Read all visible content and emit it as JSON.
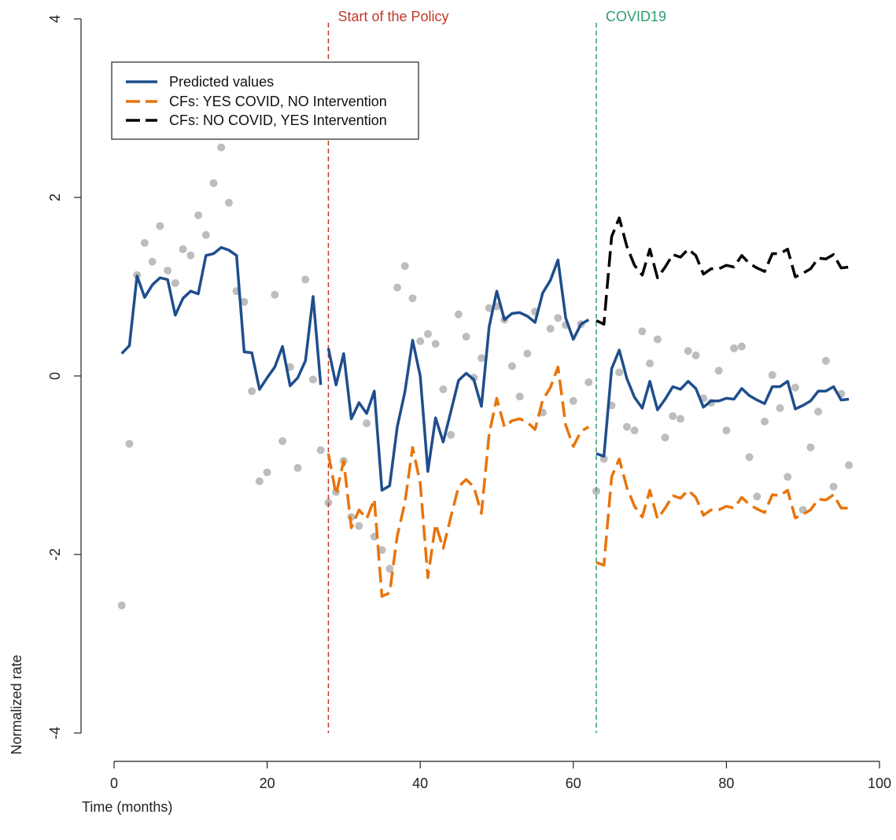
{
  "chart_data": {
    "type": "line",
    "title": "",
    "xlabel": "Time (months)",
    "ylabel": "Normalized rate",
    "xlim": [
      0,
      100
    ],
    "ylim": [
      -4,
      4
    ],
    "x_ticks": [
      "0",
      "20",
      "40",
      "60",
      "80",
      "100"
    ],
    "y_ticks": [
      "-4",
      "-2",
      "0",
      "2",
      "4"
    ],
    "grid": false,
    "legend_position": "top-left",
    "vertical_lines": [
      {
        "x": 28,
        "label": "Start of the Policy",
        "color": "#c0392b"
      },
      {
        "x": 63,
        "label": "COVID19",
        "color": "#2e9e6e"
      }
    ],
    "observed_points": {
      "color": "#bdbdbd",
      "points": [
        [
          1,
          -2.57
        ],
        [
          2,
          -0.76
        ],
        [
          3,
          1.13
        ],
        [
          4,
          1.49
        ],
        [
          5,
          1.28
        ],
        [
          6,
          1.68
        ],
        [
          7,
          1.18
        ],
        [
          8,
          1.04
        ],
        [
          9,
          1.42
        ],
        [
          10,
          1.35
        ],
        [
          11,
          1.8
        ],
        [
          12,
          1.58
        ],
        [
          13,
          2.16
        ],
        [
          14,
          2.56
        ],
        [
          15,
          1.94
        ],
        [
          16,
          0.95
        ],
        [
          17,
          0.83
        ],
        [
          18,
          -0.17
        ],
        [
          19,
          -1.18
        ],
        [
          20,
          -1.08
        ],
        [
          21,
          0.91
        ],
        [
          22,
          -0.73
        ],
        [
          23,
          0.1
        ],
        [
          24,
          -1.03
        ],
        [
          25,
          1.08
        ],
        [
          26,
          -0.04
        ],
        [
          27,
          -0.83
        ],
        [
          28,
          -1.42
        ],
        [
          29,
          -1.3
        ],
        [
          30,
          -0.95
        ],
        [
          31,
          -1.58
        ],
        [
          32,
          -1.68
        ],
        [
          33,
          -0.53
        ],
        [
          34,
          -1.8
        ],
        [
          35,
          -1.95
        ],
        [
          36,
          -2.16
        ],
        [
          37,
          0.99
        ],
        [
          38,
          1.23
        ],
        [
          39,
          0.87
        ],
        [
          40,
          0.39
        ],
        [
          41,
          0.47
        ],
        [
          42,
          0.36
        ],
        [
          43,
          -0.15
        ],
        [
          44,
          -0.66
        ],
        [
          45,
          0.69
        ],
        [
          46,
          0.44
        ],
        [
          47,
          -0.02
        ],
        [
          48,
          0.2
        ],
        [
          49,
          0.76
        ],
        [
          50,
          0.78
        ],
        [
          51,
          0.63
        ],
        [
          52,
          0.11
        ],
        [
          53,
          -0.23
        ],
        [
          54,
          0.25
        ],
        [
          55,
          0.72
        ],
        [
          56,
          -0.41
        ],
        [
          57,
          0.53
        ],
        [
          58,
          0.65
        ],
        [
          59,
          0.57
        ],
        [
          60,
          -0.28
        ],
        [
          61,
          0.58
        ],
        [
          62,
          -0.07
        ],
        [
          63,
          -1.29
        ],
        [
          64,
          -0.93
        ],
        [
          65,
          -0.33
        ],
        [
          66,
          0.04
        ],
        [
          67,
          -0.57
        ],
        [
          68,
          -0.61
        ],
        [
          69,
          0.5
        ],
        [
          70,
          0.14
        ],
        [
          71,
          0.41
        ],
        [
          72,
          -0.69
        ],
        [
          73,
          -0.45
        ],
        [
          74,
          -0.48
        ],
        [
          75,
          0.28
        ],
        [
          76,
          0.23
        ],
        [
          77,
          -0.25
        ],
        [
          78,
          -0.3
        ],
        [
          79,
          0.06
        ],
        [
          80,
          -0.61
        ],
        [
          81,
          0.31
        ],
        [
          82,
          0.33
        ],
        [
          83,
          -0.91
        ],
        [
          84,
          -1.35
        ],
        [
          85,
          -0.51
        ],
        [
          86,
          0.01
        ],
        [
          87,
          -0.36
        ],
        [
          88,
          -1.13
        ],
        [
          89,
          -0.13
        ],
        [
          90,
          -1.5
        ],
        [
          91,
          -0.8
        ],
        [
          92,
          -0.4
        ],
        [
          93,
          0.17
        ],
        [
          94,
          -1.24
        ],
        [
          95,
          -0.2
        ],
        [
          96,
          -1.0
        ]
      ]
    },
    "series": [
      {
        "name": "Predicted values",
        "color": "#1f4e8c",
        "style": "solid",
        "segments": [
          [
            [
              1,
              0.25
            ],
            [
              2,
              0.34
            ],
            [
              3,
              1.12
            ],
            [
              4,
              0.88
            ],
            [
              5,
              1.02
            ],
            [
              6,
              1.1
            ],
            [
              7,
              1.08
            ],
            [
              8,
              0.68
            ],
            [
              9,
              0.87
            ],
            [
              10,
              0.95
            ],
            [
              11,
              0.92
            ],
            [
              12,
              1.35
            ],
            [
              13,
              1.37
            ],
            [
              14,
              1.44
            ],
            [
              15,
              1.41
            ],
            [
              16,
              1.35
            ],
            [
              17,
              0.27
            ],
            [
              18,
              0.26
            ],
            [
              19,
              -0.15
            ],
            [
              20,
              -0.02
            ],
            [
              21,
              0.1
            ],
            [
              22,
              0.33
            ],
            [
              23,
              -0.11
            ],
            [
              24,
              -0.02
            ],
            [
              25,
              0.17
            ],
            [
              26,
              0.89
            ],
            [
              27,
              -0.1
            ]
          ],
          [
            [
              28,
              0.31
            ],
            [
              29,
              -0.1
            ],
            [
              30,
              0.25
            ],
            [
              31,
              -0.48
            ],
            [
              32,
              -0.3
            ],
            [
              33,
              -0.42
            ],
            [
              34,
              -0.17
            ],
            [
              35,
              -1.28
            ],
            [
              36,
              -1.23
            ],
            [
              37,
              -0.57
            ],
            [
              38,
              -0.18
            ],
            [
              39,
              0.4
            ],
            [
              40,
              0.0
            ],
            [
              41,
              -1.07
            ],
            [
              42,
              -0.47
            ],
            [
              43,
              -0.74
            ],
            [
              44,
              -0.4
            ],
            [
              45,
              -0.05
            ],
            [
              46,
              0.03
            ],
            [
              47,
              -0.04
            ],
            [
              48,
              -0.34
            ],
            [
              49,
              0.55
            ],
            [
              50,
              0.95
            ],
            [
              51,
              0.63
            ],
            [
              52,
              0.7
            ],
            [
              53,
              0.71
            ],
            [
              54,
              0.67
            ],
            [
              55,
              0.6
            ],
            [
              56,
              0.93
            ],
            [
              57,
              1.07
            ],
            [
              58,
              1.3
            ],
            [
              59,
              0.65
            ],
            [
              60,
              0.41
            ],
            [
              61,
              0.58
            ],
            [
              62,
              0.63
            ]
          ],
          [
            [
              63,
              -0.87
            ],
            [
              64,
              -0.9
            ],
            [
              65,
              0.08
            ],
            [
              66,
              0.29
            ],
            [
              67,
              -0.03
            ],
            [
              68,
              -0.24
            ],
            [
              69,
              -0.36
            ],
            [
              70,
              -0.06
            ],
            [
              71,
              -0.38
            ],
            [
              72,
              -0.26
            ],
            [
              73,
              -0.12
            ],
            [
              74,
              -0.15
            ],
            [
              75,
              -0.06
            ],
            [
              76,
              -0.14
            ],
            [
              77,
              -0.35
            ],
            [
              78,
              -0.28
            ],
            [
              79,
              -0.28
            ],
            [
              80,
              -0.25
            ],
            [
              81,
              -0.26
            ],
            [
              82,
              -0.14
            ],
            [
              83,
              -0.22
            ],
            [
              84,
              -0.27
            ],
            [
              85,
              -0.31
            ],
            [
              86,
              -0.12
            ],
            [
              87,
              -0.12
            ],
            [
              88,
              -0.06
            ],
            [
              89,
              -0.37
            ],
            [
              90,
              -0.33
            ],
            [
              91,
              -0.28
            ],
            [
              92,
              -0.17
            ],
            [
              93,
              -0.17
            ],
            [
              94,
              -0.12
            ],
            [
              95,
              -0.27
            ],
            [
              96,
              -0.26
            ]
          ]
        ]
      },
      {
        "name": "CFs: YES COVID, NO Intervention",
        "color": "#e8740c",
        "style": "dashed",
        "segments": [
          [
            [
              28,
              -0.87
            ],
            [
              29,
              -1.33
            ],
            [
              30,
              -0.95
            ],
            [
              31,
              -1.7
            ],
            [
              32,
              -1.5
            ],
            [
              33,
              -1.6
            ],
            [
              34,
              -1.38
            ],
            [
              35,
              -2.47
            ],
            [
              36,
              -2.43
            ],
            [
              37,
              -1.79
            ],
            [
              38,
              -1.42
            ],
            [
              39,
              -0.8
            ],
            [
              40,
              -1.2
            ],
            [
              41,
              -2.26
            ],
            [
              42,
              -1.66
            ],
            [
              43,
              -1.93
            ],
            [
              44,
              -1.58
            ],
            [
              45,
              -1.24
            ],
            [
              46,
              -1.16
            ],
            [
              47,
              -1.24
            ],
            [
              48,
              -1.54
            ],
            [
              49,
              -0.65
            ],
            [
              50,
              -0.25
            ],
            [
              51,
              -0.57
            ],
            [
              52,
              -0.5
            ],
            [
              53,
              -0.48
            ],
            [
              54,
              -0.52
            ],
            [
              55,
              -0.6
            ],
            [
              56,
              -0.27
            ],
            [
              57,
              -0.13
            ],
            [
              58,
              0.1
            ],
            [
              59,
              -0.55
            ],
            [
              60,
              -0.79
            ],
            [
              61,
              -0.62
            ],
            [
              62,
              -0.57
            ]
          ],
          [
            [
              63,
              -2.09
            ],
            [
              64,
              -2.12
            ],
            [
              65,
              -1.13
            ],
            [
              66,
              -0.93
            ],
            [
              67,
              -1.25
            ],
            [
              68,
              -1.46
            ],
            [
              69,
              -1.58
            ],
            [
              70,
              -1.28
            ],
            [
              71,
              -1.6
            ],
            [
              72,
              -1.48
            ],
            [
              73,
              -1.34
            ],
            [
              74,
              -1.37
            ],
            [
              75,
              -1.28
            ],
            [
              76,
              -1.36
            ],
            [
              77,
              -1.56
            ],
            [
              78,
              -1.5
            ],
            [
              79,
              -1.5
            ],
            [
              80,
              -1.46
            ],
            [
              81,
              -1.48
            ],
            [
              82,
              -1.36
            ],
            [
              83,
              -1.44
            ],
            [
              84,
              -1.49
            ],
            [
              85,
              -1.53
            ],
            [
              86,
              -1.33
            ],
            [
              87,
              -1.34
            ],
            [
              88,
              -1.28
            ],
            [
              89,
              -1.59
            ],
            [
              90,
              -1.55
            ],
            [
              91,
              -1.5
            ],
            [
              92,
              -1.38
            ],
            [
              93,
              -1.39
            ],
            [
              94,
              -1.33
            ],
            [
              95,
              -1.48
            ],
            [
              96,
              -1.48
            ]
          ]
        ]
      },
      {
        "name": "CFs: NO COVID, YES Intervention",
        "color": "#000000",
        "style": "dashed",
        "segments": [
          [
            [
              63,
              0.62
            ],
            [
              64,
              0.58
            ],
            [
              65,
              1.56
            ],
            [
              66,
              1.77
            ],
            [
              67,
              1.45
            ],
            [
              68,
              1.24
            ],
            [
              69,
              1.13
            ],
            [
              70,
              1.42
            ],
            [
              71,
              1.1
            ],
            [
              72,
              1.22
            ],
            [
              73,
              1.36
            ],
            [
              74,
              1.33
            ],
            [
              75,
              1.42
            ],
            [
              76,
              1.35
            ],
            [
              77,
              1.14
            ],
            [
              78,
              1.2
            ],
            [
              79,
              1.2
            ],
            [
              80,
              1.24
            ],
            [
              81,
              1.22
            ],
            [
              82,
              1.35
            ],
            [
              83,
              1.26
            ],
            [
              84,
              1.21
            ],
            [
              85,
              1.17
            ],
            [
              86,
              1.37
            ],
            [
              87,
              1.37
            ],
            [
              88,
              1.42
            ],
            [
              89,
              1.11
            ],
            [
              90,
              1.15
            ],
            [
              91,
              1.2
            ],
            [
              92,
              1.32
            ],
            [
              93,
              1.31
            ],
            [
              94,
              1.36
            ],
            [
              95,
              1.21
            ],
            [
              96,
              1.22
            ]
          ]
        ]
      }
    ]
  }
}
